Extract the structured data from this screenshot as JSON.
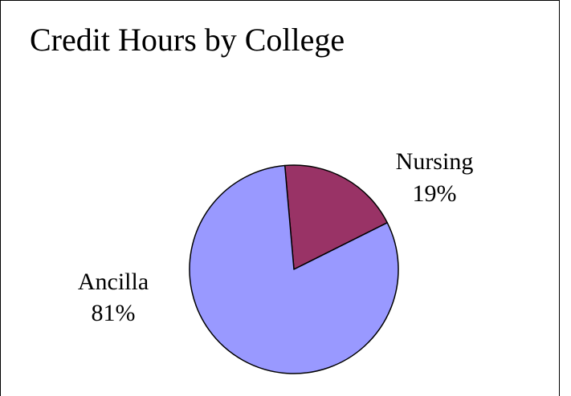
{
  "chart_data": {
    "type": "pie",
    "title": "Credit Hours by College",
    "slices": [
      {
        "label": "Nursing",
        "value_label": "19%",
        "value": 19,
        "color": "#993366"
      },
      {
        "label": "Ancilla",
        "value_label": "81%",
        "value": 81,
        "color": "#9999ff"
      }
    ],
    "start_slice": "Nursing",
    "legend": "none"
  }
}
